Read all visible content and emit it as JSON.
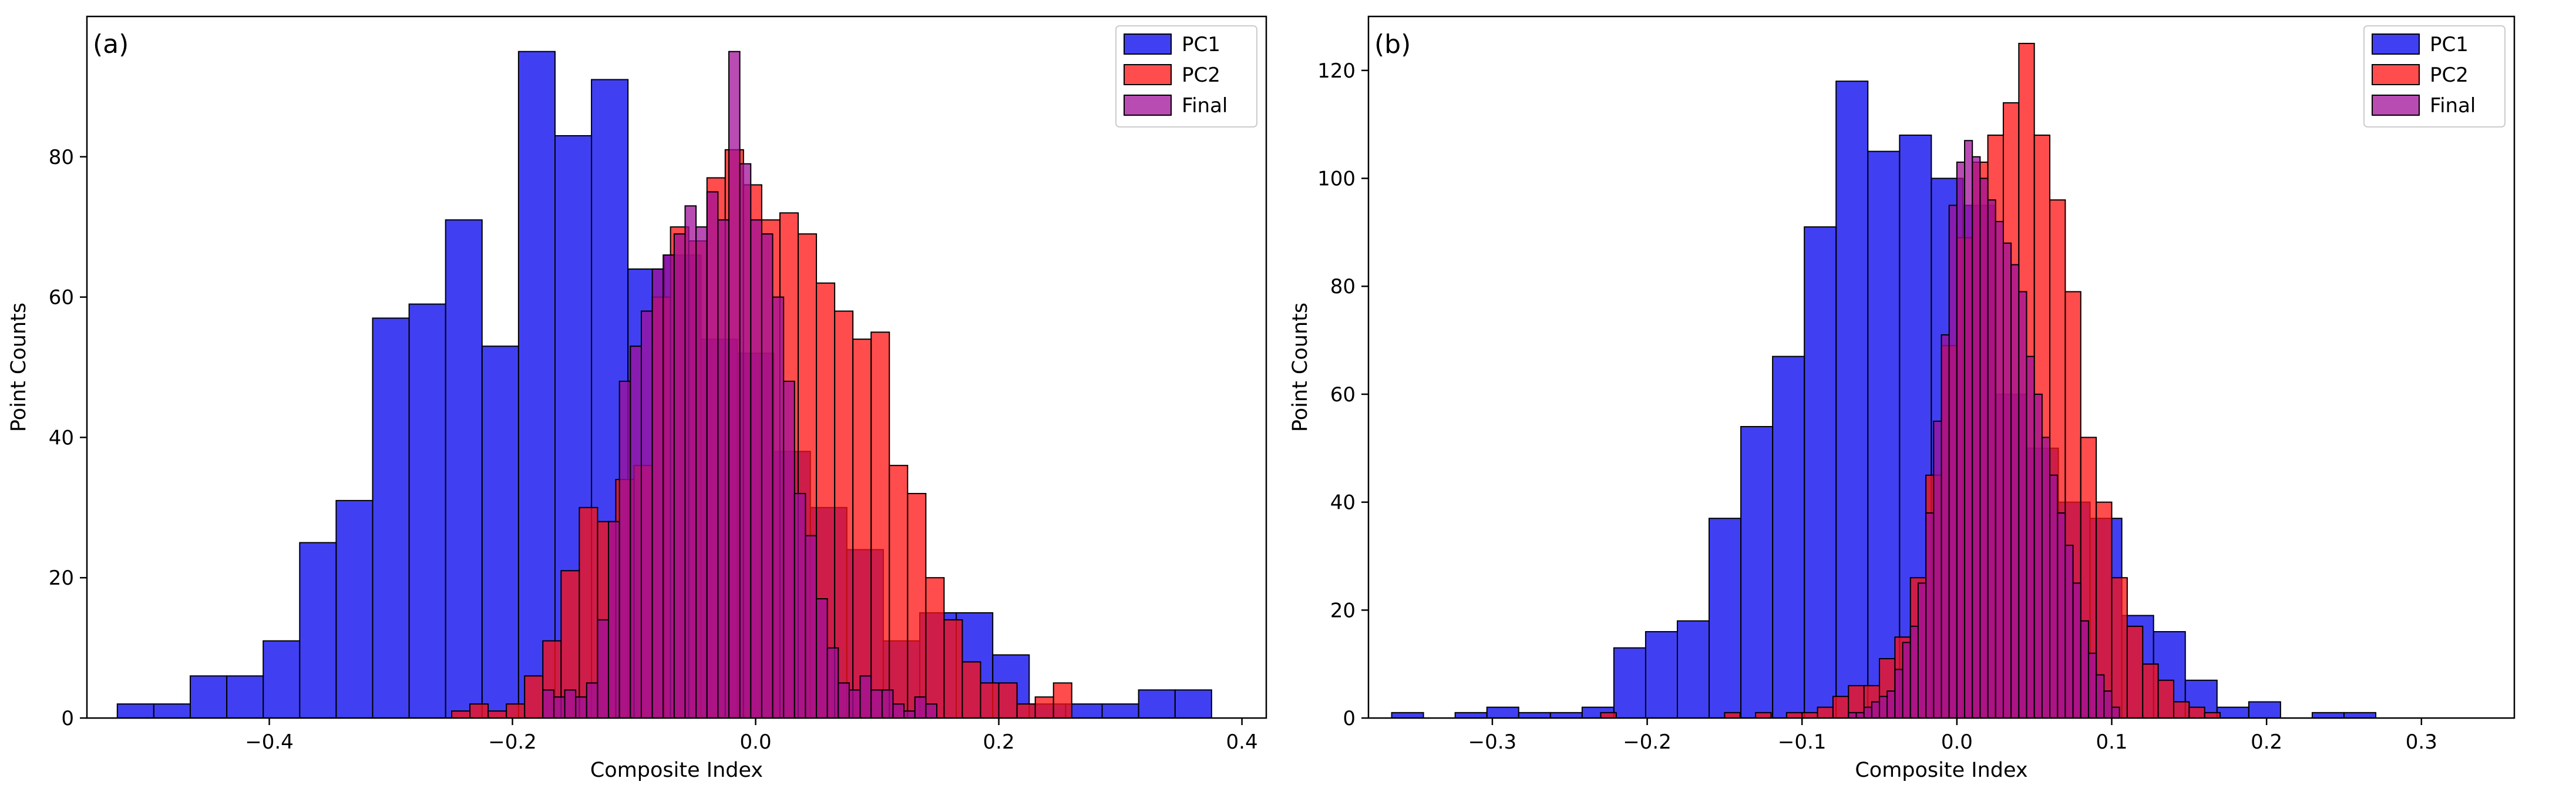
{
  "colors": {
    "pc1": "#0000ee",
    "pc2": "#ff1111",
    "final": "#a0109a",
    "edge": "#000000"
  },
  "chart_data": [
    {
      "type": "histogram",
      "panel_label": "(a)",
      "xlabel": "Composite Index",
      "ylabel": "Point Counts",
      "xlim": [
        -0.55,
        0.42
      ],
      "ylim": [
        0,
        100
      ],
      "xticks": [
        "−0.4",
        "−0.2",
        "0.0",
        "0.2",
        "0.4"
      ],
      "xtick_values": [
        -0.4,
        -0.2,
        0.0,
        0.2,
        0.4
      ],
      "yticks": [
        "0",
        "20",
        "40",
        "60",
        "80"
      ],
      "ytick_values": [
        0,
        20,
        40,
        60,
        80
      ],
      "legend": [
        "PC1",
        "PC2",
        "Final"
      ],
      "legend_position": "upper right",
      "series": [
        {
          "name": "PC1",
          "bin_start": -0.525,
          "bin_width": 0.03,
          "counts": [
            2,
            2,
            6,
            6,
            11,
            25,
            31,
            57,
            59,
            71,
            53,
            95,
            83,
            91,
            64,
            66,
            54,
            52,
            38,
            30,
            24,
            11,
            15,
            15,
            9,
            2,
            2,
            2,
            4,
            4
          ]
        },
        {
          "name": "PC2",
          "bin_start": -0.25,
          "bin_width": 0.015,
          "counts": [
            1,
            2,
            1,
            2,
            6,
            11,
            21,
            30,
            28,
            34,
            36,
            60,
            70,
            68,
            77,
            81,
            76,
            71,
            72,
            69,
            62,
            58,
            54,
            55,
            36,
            32,
            20,
            14,
            8,
            5,
            5,
            2,
            3,
            5
          ]
        },
        {
          "name": "Final",
          "bin_start": -0.175,
          "bin_width": 0.009,
          "counts": [
            4,
            3,
            4,
            3,
            5,
            14,
            28,
            48,
            53,
            58,
            64,
            66,
            69,
            73,
            70,
            75,
            71,
            95,
            79,
            71,
            69,
            60,
            48,
            32,
            26,
            17,
            10,
            5,
            4,
            6,
            4,
            4,
            2,
            1,
            3,
            2
          ]
        }
      ]
    },
    {
      "type": "histogram",
      "panel_label": "(b)",
      "xlabel": "Composite Index",
      "ylabel": "Point Counts",
      "xlim": [
        -0.38,
        0.36
      ],
      "ylim": [
        0,
        130
      ],
      "xticks": [
        "−0.3",
        "−0.2",
        "−0.1",
        "0.0",
        "0.1",
        "0.2",
        "0.3"
      ],
      "xtick_values": [
        -0.3,
        -0.2,
        -0.1,
        0.0,
        0.1,
        0.2,
        0.3
      ],
      "yticks": [
        "0",
        "20",
        "40",
        "60",
        "80",
        "100",
        "120"
      ],
      "ytick_values": [
        0,
        20,
        40,
        60,
        80,
        100,
        120
      ],
      "legend": [
        "PC1",
        "PC2",
        "Final"
      ],
      "legend_position": "upper right",
      "series": [
        {
          "name": "PC1",
          "bin_start": -0.365,
          "bin_width": 0.0205,
          "counts": [
            1,
            0,
            1,
            2,
            1,
            1,
            2,
            13,
            16,
            18,
            37,
            54,
            67,
            91,
            118,
            105,
            108,
            100,
            95,
            60,
            50,
            40,
            37,
            19,
            16,
            7,
            2,
            3,
            0,
            1,
            1
          ]
        },
        {
          "name": "PC2",
          "bin_start": -0.23,
          "bin_width": 0.01,
          "counts": [
            1,
            0,
            0,
            0,
            0,
            0,
            0,
            0,
            1,
            0,
            1,
            0,
            1,
            1,
            2,
            4,
            6,
            6,
            11,
            15,
            26,
            45,
            69,
            89,
            103,
            108,
            114,
            125,
            108,
            96,
            79,
            52,
            40,
            26,
            17,
            10,
            7,
            3,
            2,
            1
          ]
        },
        {
          "name": "Final",
          "bin_start": -0.07,
          "bin_width": 0.005,
          "counts": [
            1,
            1,
            2,
            3,
            4,
            5,
            9,
            14,
            17,
            25,
            38,
            55,
            71,
            95,
            103,
            107,
            104,
            100,
            96,
            92,
            88,
            84,
            79,
            67,
            60,
            52,
            45,
            38,
            32,
            25,
            18,
            12,
            8,
            5,
            2
          ]
        }
      ]
    }
  ]
}
